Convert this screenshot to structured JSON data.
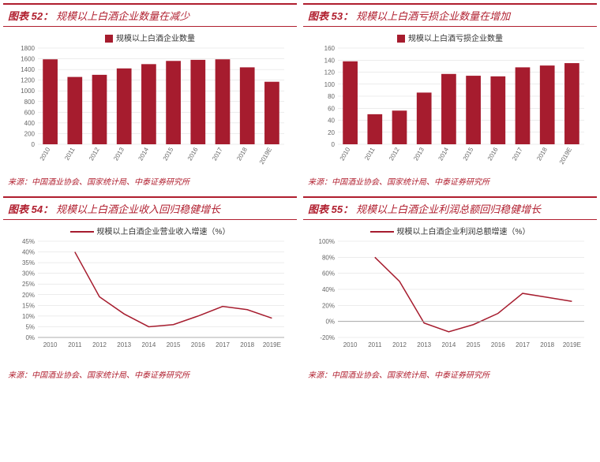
{
  "categories": [
    "2010",
    "2011",
    "2012",
    "2013",
    "2014",
    "2015",
    "2016",
    "2017",
    "2018",
    "2019E"
  ],
  "source_label": "来源：中国酒业协会、国家统计局、中泰证券研究所",
  "colors": {
    "brand": "#b01e2e",
    "bar": "#a61c2e",
    "grid": "#d9d9d9",
    "text": "#666666"
  },
  "charts": {
    "c52": {
      "title_num": "图表 52：",
      "title_txt": "规模以上白酒企业数量在减少",
      "legend": "规模以上白酒企业数量",
      "type": "bar",
      "ylim": [
        0,
        1800
      ],
      "ytick_step": 200,
      "values": [
        1590,
        1260,
        1300,
        1420,
        1500,
        1560,
        1580,
        1590,
        1440,
        1170
      ]
    },
    "c53": {
      "title_num": "图表 53：",
      "title_txt": "规模以上白酒亏损企业数量在增加",
      "legend": "规模以上白酒亏损企业数量",
      "type": "bar",
      "ylim": [
        0,
        160
      ],
      "ytick_step": 20,
      "values": [
        138,
        50,
        56,
        86,
        117,
        114,
        113,
        128,
        131,
        135
      ]
    },
    "c54": {
      "title_num": "图表 54：",
      "title_txt": "规模以上白酒企业收入回归稳健增长",
      "legend": "规模以上白酒企业营业收入增速（%）",
      "type": "line",
      "ylim": [
        0,
        45
      ],
      "ytick_step": 5,
      "y_suffix": "%",
      "values": [
        null,
        40,
        19,
        11,
        5,
        6,
        10,
        14.5,
        13,
        9
      ]
    },
    "c55": {
      "title_num": "图表 55：",
      "title_txt": "规模以上白酒企业利润总额回归稳健增长",
      "legend": "规模以上白酒企业利润总额增速（%）",
      "type": "line",
      "ylim": [
        -20,
        100
      ],
      "ytick_step": 20,
      "y_suffix": "%",
      "values": [
        null,
        80,
        50,
        -2,
        -13,
        -4,
        10,
        35,
        30,
        25
      ]
    }
  }
}
